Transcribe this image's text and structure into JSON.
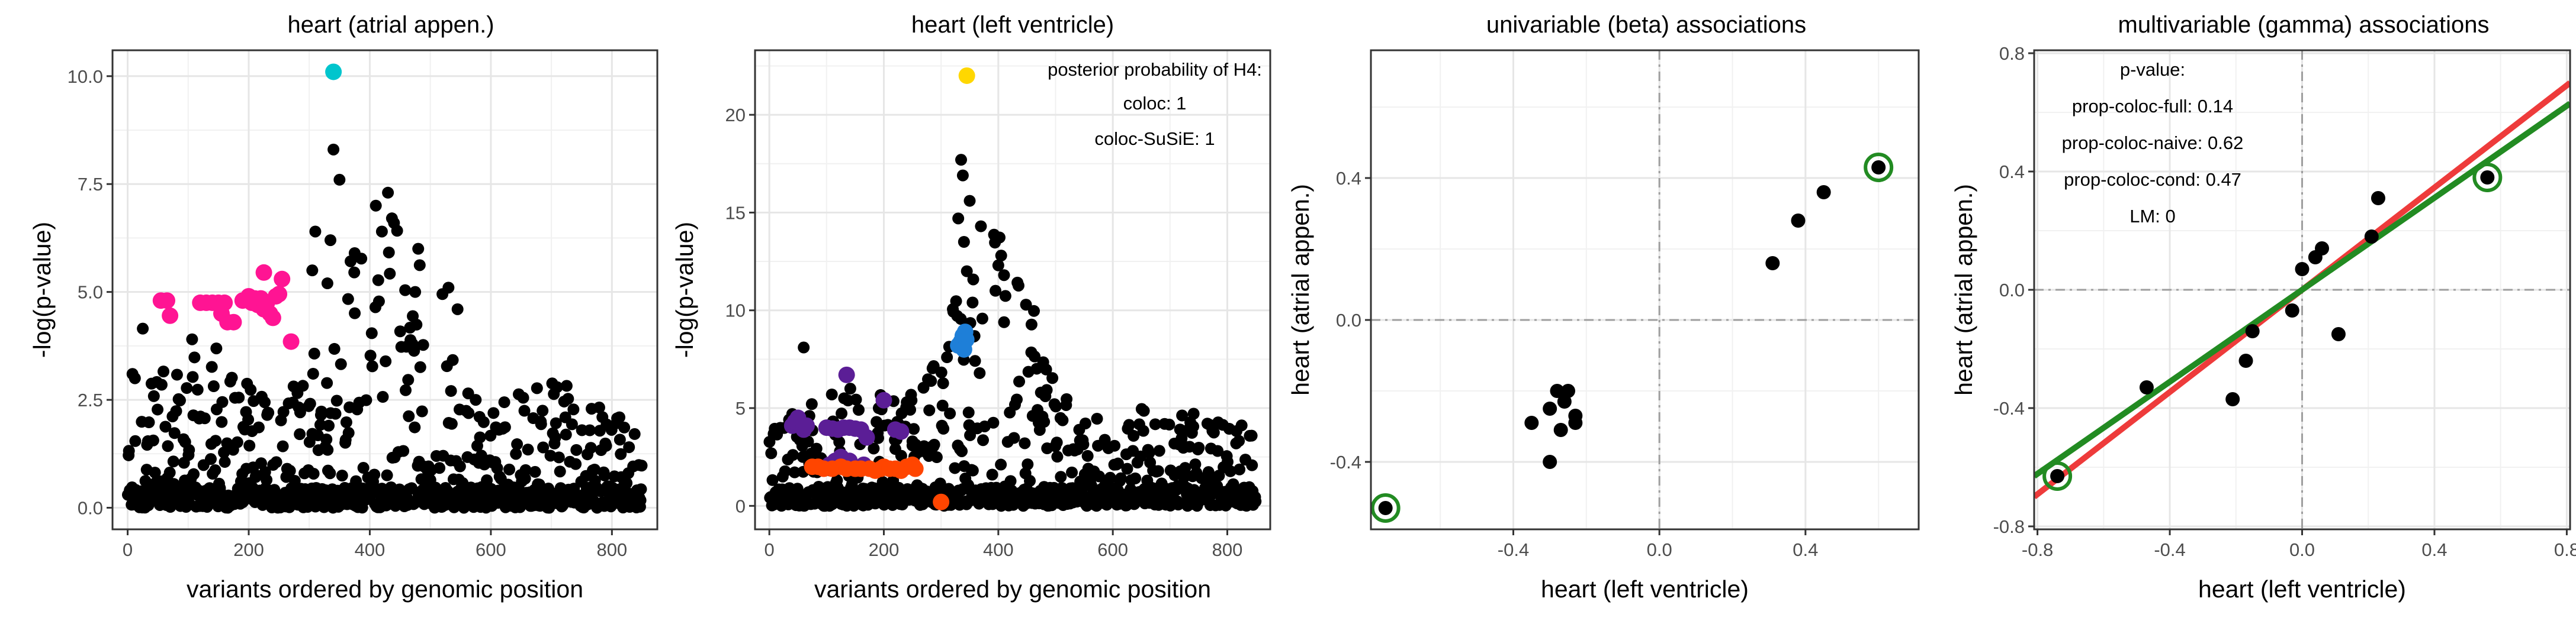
{
  "chart_data": [
    {
      "type": "scatter",
      "title": "heart (atrial appen.)",
      "xlabel": "variants ordered by genomic position",
      "ylabel": "-log(p-value)",
      "xlim": [
        -25,
        875
      ],
      "ylim": [
        -0.5,
        10.6
      ],
      "xticks": [
        0,
        200,
        400,
        600,
        800
      ],
      "yticks": [
        0,
        2.5,
        5,
        7.5,
        10
      ],
      "ytick_labels": [
        "0.0",
        "2.5",
        "5.0",
        "7.5",
        "10.0"
      ],
      "grid": true,
      "background_series": {
        "color": "#000000",
        "generator": "dense-variant-cloud",
        "n": 850,
        "baseline_max": 1.9,
        "peaks": [
          {
            "center": 420,
            "width": 110,
            "height": 5.2
          },
          {
            "center": 120,
            "width": 90,
            "height": 2.2
          },
          {
            "center": 700,
            "width": 90,
            "height": 1.0
          }
        ],
        "extra_points": [
          {
            "x": 8,
            "y": 3.1
          },
          {
            "x": 12,
            "y": 3.0
          },
          {
            "x": 25,
            "y": 4.15
          },
          {
            "x": 340,
            "y": 8.3
          },
          {
            "x": 335,
            "y": 6.2
          },
          {
            "x": 350,
            "y": 7.6
          },
          {
            "x": 375,
            "y": 5.9
          },
          {
            "x": 430,
            "y": 7.3
          },
          {
            "x": 410,
            "y": 7.0
          },
          {
            "x": 440,
            "y": 6.6
          },
          {
            "x": 310,
            "y": 6.4
          },
          {
            "x": 420,
            "y": 6.4
          },
          {
            "x": 480,
            "y": 6.0
          },
          {
            "x": 520,
            "y": 4.95
          },
          {
            "x": 530,
            "y": 5.1
          },
          {
            "x": 545,
            "y": 4.6
          },
          {
            "x": 475,
            "y": 5.0
          },
          {
            "x": 575,
            "y": 2.5
          },
          {
            "x": 205,
            "y": 4.7
          },
          {
            "x": 330,
            "y": 5.2
          },
          {
            "x": 305,
            "y": 5.5
          }
        ]
      },
      "highlight_series": [
        {
          "color": "#00C5CD",
          "points": [
            [
              340,
              10.1
            ]
          ]
        },
        {
          "color": "#FF1493",
          "points": [
            [
              55,
              4.8
            ],
            [
              65,
              4.8
            ],
            [
              70,
              4.45
            ],
            [
              120,
              4.75
            ],
            [
              130,
              4.75
            ],
            [
              140,
              4.75
            ],
            [
              150,
              4.75
            ],
            [
              160,
              4.75
            ],
            [
              155,
              4.5
            ],
            [
              165,
              4.3
            ],
            [
              175,
              4.3
            ],
            [
              190,
              4.8
            ],
            [
              200,
              4.9
            ],
            [
              205,
              4.75
            ],
            [
              210,
              4.85
            ],
            [
              215,
              4.7
            ],
            [
              220,
              4.85
            ],
            [
              225,
              4.6
            ],
            [
              230,
              4.75
            ],
            [
              235,
              4.5
            ],
            [
              240,
              4.4
            ],
            [
              245,
              4.9
            ],
            [
              250,
              4.95
            ],
            [
              225,
              5.45
            ],
            [
              255,
              5.3
            ],
            [
              270,
              3.85
            ]
          ]
        }
      ]
    },
    {
      "type": "scatter",
      "title": "heart (left ventricle)",
      "xlabel": "variants ordered by genomic position",
      "ylabel": "-log(p-value)",
      "xlim": [
        -25,
        875
      ],
      "ylim": [
        -1.2,
        23.3
      ],
      "xticks": [
        0,
        200,
        400,
        600,
        800
      ],
      "yticks": [
        0,
        5,
        10,
        15,
        20
      ],
      "ytick_labels": [
        "0",
        "5",
        "10",
        "15",
        "20"
      ],
      "grid": true,
      "annotations": [
        "posterior probability of H4:",
        "coloc: 1",
        "coloc-SuSiE: 1"
      ],
      "background_series": {
        "color": "#000000",
        "generator": "dense-variant-cloud",
        "n": 850,
        "baseline_max": 3.8,
        "peaks": [
          {
            "center": 390,
            "width": 90,
            "height": 12.0
          },
          {
            "center": 150,
            "width": 100,
            "height": 2.5
          },
          {
            "center": 690,
            "width": 110,
            "height": 1.5
          }
        ],
        "extra_points": [
          {
            "x": 335,
            "y": 17.7
          },
          {
            "x": 338,
            "y": 16.9
          },
          {
            "x": 330,
            "y": 14.7
          },
          {
            "x": 350,
            "y": 15.6
          },
          {
            "x": 340,
            "y": 13.5
          },
          {
            "x": 405,
            "y": 12.8
          },
          {
            "x": 400,
            "y": 12.3
          },
          {
            "x": 395,
            "y": 11.0
          },
          {
            "x": 410,
            "y": 11.8
          },
          {
            "x": 345,
            "y": 12.0
          },
          {
            "x": 355,
            "y": 10.4
          },
          {
            "x": 60,
            "y": 8.1
          },
          {
            "x": 40,
            "y": 4.7
          },
          {
            "x": 70,
            "y": 4.6
          },
          {
            "x": 240,
            "y": 5.3
          },
          {
            "x": 460,
            "y": 4.6
          },
          {
            "x": 480,
            "y": 4.3
          },
          {
            "x": 250,
            "y": 3.3
          }
        ]
      },
      "highlight_series": [
        {
          "color": "#FFD700",
          "points": [
            [
              345,
              22.0
            ]
          ]
        },
        {
          "color": "#1E7FD8",
          "points": [
            [
              330,
              8.2
            ],
            [
              335,
              8.4
            ],
            [
              338,
              8.7
            ],
            [
              342,
              8.9
            ],
            [
              344,
              8.5
            ],
            [
              340,
              8.0
            ]
          ]
        },
        {
          "color": "#5B1E96",
          "points": [
            [
              40,
              4.1
            ],
            [
              45,
              4.3
            ],
            [
              50,
              4.5
            ],
            [
              60,
              3.9
            ],
            [
              65,
              4.1
            ],
            [
              100,
              4.0
            ],
            [
              110,
              3.95
            ],
            [
              120,
              3.9
            ],
            [
              130,
              4.0
            ],
            [
              140,
              4.0
            ],
            [
              150,
              3.95
            ],
            [
              160,
              3.9
            ],
            [
              170,
              3.5
            ],
            [
              135,
              6.7
            ],
            [
              200,
              5.4
            ],
            [
              220,
              3.9
            ],
            [
              105,
              2.1
            ],
            [
              115,
              2.3
            ],
            [
              125,
              2.5
            ],
            [
              140,
              2.3
            ],
            [
              165,
              2.1
            ],
            [
              230,
              3.8
            ]
          ]
        },
        {
          "color": "#FF4500",
          "points": [
            [
              75,
              2.0
            ],
            [
              85,
              2.0
            ],
            [
              95,
              1.9
            ],
            [
              110,
              1.9
            ],
            [
              125,
              2.0
            ],
            [
              135,
              1.9
            ],
            [
              150,
              1.9
            ],
            [
              160,
              1.9
            ],
            [
              175,
              1.9
            ],
            [
              185,
              1.8
            ],
            [
              195,
              1.9
            ],
            [
              200,
              2.0
            ],
            [
              210,
              1.9
            ],
            [
              220,
              1.9
            ],
            [
              230,
              1.8
            ],
            [
              240,
              2.0
            ],
            [
              250,
              2.1
            ],
            [
              255,
              1.9
            ],
            [
              300,
              0.2
            ]
          ]
        }
      ]
    },
    {
      "type": "scatter",
      "title": "univariable (beta) associations",
      "xlabel": "heart (left ventricle)",
      "ylabel": "heart (atrial appen.)",
      "xlim": [
        -0.79,
        0.71
      ],
      "ylim": [
        -0.59,
        0.76
      ],
      "xticks": [
        -0.4,
        0.0,
        0.4
      ],
      "yticks": [
        -0.4,
        0.0,
        0.4
      ],
      "xtick_labels": [
        "-0.4",
        "0.0",
        "0.4"
      ],
      "ytick_labels": [
        "-0.4",
        "0.0",
        "0.4"
      ],
      "grid": true,
      "reference_lines": {
        "x": 0,
        "y": 0,
        "style": "dashed",
        "color": "#9e9e9e"
      },
      "points": [
        [
          -0.3,
          -0.4
        ],
        [
          -0.35,
          -0.29
        ],
        [
          -0.28,
          -0.2
        ],
        [
          -0.25,
          -0.2
        ],
        [
          -0.26,
          -0.23
        ],
        [
          -0.23,
          -0.27
        ],
        [
          -0.27,
          -0.31
        ],
        [
          -0.23,
          -0.29
        ],
        [
          -0.3,
          -0.25
        ],
        [
          0.31,
          0.16
        ],
        [
          0.38,
          0.28
        ],
        [
          0.45,
          0.36
        ],
        [
          0.6,
          0.43
        ],
        [
          -0.75,
          -0.53
        ]
      ],
      "circled_points": [
        [
          0.6,
          0.43
        ],
        [
          -0.75,
          -0.53
        ]
      ],
      "circle_color": "#228B22"
    },
    {
      "type": "scatter",
      "title": "multivariable (gamma) associations",
      "xlabel": "heart (left ventricle)",
      "ylabel": "heart (atrial appen.)",
      "xlim": [
        -0.81,
        0.81
      ],
      "ylim": [
        -0.81,
        0.81
      ],
      "xticks": [
        -0.8,
        -0.4,
        0.0,
        0.4,
        0.8
      ],
      "yticks": [
        -0.8,
        -0.4,
        0.0,
        0.4,
        0.8
      ],
      "xtick_labels": [
        "-0.8",
        "-0.4",
        "0.0",
        "0.4",
        "0.8"
      ],
      "ytick_labels": [
        "-0.8",
        "-0.4",
        "0.0",
        "0.4",
        "0.8"
      ],
      "grid": true,
      "reference_lines": {
        "x": 0,
        "y": 0,
        "style": "dashed",
        "color": "#9e9e9e"
      },
      "annotations": [
        "p-value:",
        "prop-coloc-full: 0.14",
        "prop-coloc-naive: 0.62",
        "prop-coloc-cond: 0.47",
        "LM: 0"
      ],
      "points": [
        [
          -0.74,
          -0.63
        ],
        [
          -0.47,
          -0.33
        ],
        [
          -0.21,
          -0.37
        ],
        [
          -0.17,
          -0.24
        ],
        [
          -0.15,
          -0.14
        ],
        [
          -0.03,
          -0.07
        ],
        [
          0.0,
          0.07
        ],
        [
          0.04,
          0.11
        ],
        [
          0.06,
          0.14
        ],
        [
          0.11,
          -0.15
        ],
        [
          0.21,
          0.18
        ],
        [
          0.23,
          0.31
        ],
        [
          0.56,
          0.38
        ]
      ],
      "circled_points": [
        [
          0.56,
          0.38
        ],
        [
          -0.74,
          -0.63
        ]
      ],
      "circle_color": "#228B22",
      "fit_lines": [
        {
          "color": "#EE3B3B",
          "x": [
            -0.81,
            0.81
          ],
          "y": [
            -0.7,
            0.7
          ]
        },
        {
          "color": "#228B22",
          "x": [
            -0.81,
            0.81
          ],
          "y": [
            -0.63,
            0.63
          ]
        }
      ]
    }
  ]
}
